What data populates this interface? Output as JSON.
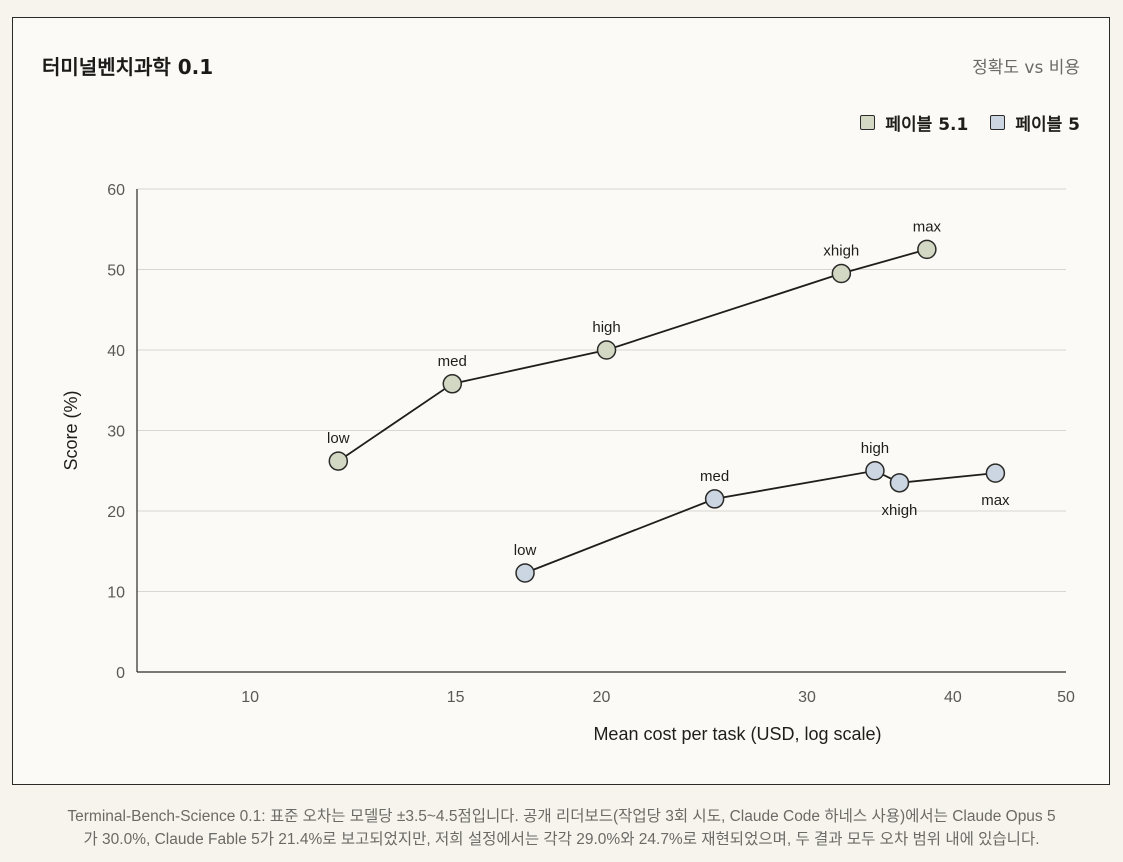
{
  "header": {
    "title": "터미널벤치과학 0.1",
    "subtitle": "정확도 vs 비용"
  },
  "legend": {
    "items": [
      {
        "label": "페이블 5.1",
        "color": "#d3d8c4"
      },
      {
        "label": "페이블 5",
        "color": "#ccd6e2"
      }
    ]
  },
  "chart_data": {
    "type": "line",
    "xlabel": "Mean cost per task (USD, log scale)",
    "ylabel": "Score (%)",
    "x_scale": "log",
    "xlim": [
      8,
      50
    ],
    "ylim": [
      0,
      60
    ],
    "xticks": [
      10,
      15,
      20,
      30,
      40,
      50
    ],
    "yticks": [
      0,
      10,
      20,
      30,
      40,
      50,
      60
    ],
    "grid": "horizontal",
    "legend_position": "top-right",
    "series": [
      {
        "name": "페이블 5.1",
        "color": "#d3d8c4",
        "points": [
          {
            "label": "low",
            "x": 11.9,
            "y": 26.2,
            "label_pos": "above"
          },
          {
            "label": "med",
            "x": 14.9,
            "y": 35.8,
            "label_pos": "above"
          },
          {
            "label": "high",
            "x": 20.2,
            "y": 40.0,
            "label_pos": "above"
          },
          {
            "label": "xhigh",
            "x": 32.1,
            "y": 49.5,
            "label_pos": "above"
          },
          {
            "label": "max",
            "x": 38.0,
            "y": 52.5,
            "label_pos": "above"
          }
        ]
      },
      {
        "name": "페이블 5",
        "color": "#ccd6e2",
        "points": [
          {
            "label": "low",
            "x": 17.2,
            "y": 12.3,
            "label_pos": "above"
          },
          {
            "label": "med",
            "x": 25.0,
            "y": 21.5,
            "label_pos": "above"
          },
          {
            "label": "high",
            "x": 34.3,
            "y": 25.0,
            "label_pos": "above"
          },
          {
            "label": "xhigh",
            "x": 36.0,
            "y": 23.5,
            "label_pos": "below"
          },
          {
            "label": "max",
            "x": 43.5,
            "y": 24.7,
            "label_pos": "below"
          }
        ]
      }
    ]
  },
  "caption": {
    "line1": "Terminal-Bench-Science 0.1: 표준 오차는 모델당 ±3.5~4.5점입니다. 공개 리더보드(작업당 3회 시도, Claude Code 하네스 사용)에서는 Claude Opus 5",
    "line2": "가 30.0%, Claude Fable 5가 21.4%로 보고되었지만, 저희 설정에서는 각각 29.0%와 24.7%로 재현되었으며, 두 결과 모두 오차 범위 내에 있습니다."
  }
}
